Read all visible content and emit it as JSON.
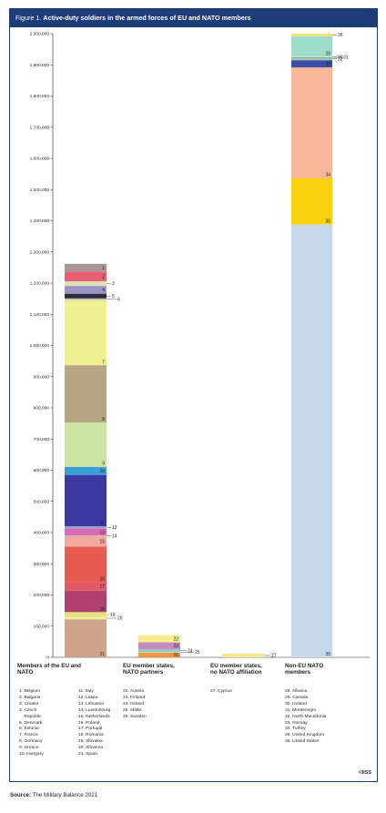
{
  "figure": {
    "number": "Figure 1.",
    "title": "Active-duty soldiers in the armed forces of EU and NATO members",
    "copyright": "©IISS"
  },
  "source": {
    "label": "Source:",
    "text": "The Military Balance 2021"
  },
  "groups": [
    {
      "title": "Members of the EU and\nNATO",
      "legend_columns": [
        [
          "1. Belgium",
          "2. Bulgaria",
          "3. Croatia",
          "4. Czech\n    Republic",
          "5. Denmark",
          "6. Estonia",
          "7. France",
          "8. Germany",
          "9. Greece",
          "10. Hungary"
        ],
        [
          "11. Italy",
          "12. Latvia",
          "13. Lithuania",
          "14. Luxembourg",
          "15. Netherlands",
          "16. Poland",
          "17. Portugal",
          "18. Romania",
          "19. Slovakia",
          "20. Slovenia",
          "21. Spain"
        ]
      ]
    },
    {
      "title": "EU member states,\nNATO partners",
      "legend_columns": [
        [
          "22. Austria",
          "23. Finland",
          "24. Ireland",
          "25. Malta",
          "26. Sweden"
        ]
      ]
    },
    {
      "title": "EU member states,\nno NATO affiliation",
      "legend_columns": [
        [
          "27. Cyprus"
        ]
      ]
    },
    {
      "title": "Non-EU NATO\nmembers",
      "legend_columns": [
        [
          "28. Albania",
          "29. Canada",
          "30. Iceland",
          "31. Montenegro",
          "32. North Macedonia",
          "33. Norway",
          "34. Turkey",
          "35. United Kingdom",
          "36. United States"
        ]
      ]
    }
  ],
  "chart_data": {
    "type": "bar",
    "stacked": true,
    "title": "Active-duty soldiers in the armed forces of EU and NATO members",
    "categories": [
      "Members of the EU and NATO",
      "EU member states, NATO partners",
      "EU member states, no NATO affiliation",
      "Non-EU NATO members"
    ],
    "ylim": [
      0,
      2000000
    ],
    "yticks": [
      0,
      100000,
      200000,
      300000,
      400000,
      500000,
      600000,
      700000,
      800000,
      900000,
      1000000,
      1100000,
      1200000,
      1300000,
      1400000,
      1500000,
      1600000,
      1700000,
      1800000,
      1900000,
      2000000
    ],
    "ytick_labels": [
      "0",
      "100,000",
      "200,000",
      "300,000",
      "400,000",
      "500,000",
      "600,000",
      "700,000",
      "800,000",
      "900,000",
      "1,000,000",
      "1,100,000",
      "1,200,000",
      "1,300,000",
      "1,400,000",
      "1,500,000",
      "1,600,000",
      "1,700,000",
      "1,800,000",
      "1,900,000",
      "2,000,000"
    ],
    "grid": false,
    "stacks": [
      {
        "category": "Members of the EU and NATO",
        "segments": [
          {
            "id": "21",
            "value": 122000,
            "color": "#cfa48c"
          },
          {
            "id": "20",
            "value": 7000,
            "color": "#f4ee9c"
          },
          {
            "id": "19",
            "value": 16000,
            "color": "#e7e37c"
          },
          {
            "id": "18",
            "value": 69000,
            "color": "#b3416f"
          },
          {
            "id": "17",
            "value": 27000,
            "color": "#e05a68"
          },
          {
            "id": "16",
            "value": 114000,
            "color": "#e65c52"
          },
          {
            "id": "15",
            "value": 34000,
            "color": "#f2a8a0"
          },
          {
            "id": "14",
            "value": 1000,
            "color": "#d3e9c0"
          },
          {
            "id": "13",
            "value": 23000,
            "color": "#d86cb4"
          },
          {
            "id": "12",
            "value": 7000,
            "color": "#9aa6cc"
          },
          {
            "id": "11",
            "value": 165000,
            "color": "#3c3aa0"
          },
          {
            "id": "10",
            "value": 26000,
            "color": "#3d9fd8"
          },
          {
            "id": "9",
            "value": 142000,
            "color": "#cde5a4"
          },
          {
            "id": "8",
            "value": 184000,
            "color": "#b6a784"
          },
          {
            "id": "7",
            "value": 208000,
            "color": "#eff090"
          },
          {
            "id": "6",
            "value": 6000,
            "color": "#c8c3b3"
          },
          {
            "id": "5",
            "value": 15000,
            "color": "#2e2a3c"
          },
          {
            "id": "4",
            "value": 25000,
            "color": "#9c93c9"
          },
          {
            "id": "3",
            "value": 15000,
            "color": "#dbe3b6"
          },
          {
            "id": "2",
            "value": 31000,
            "color": "#e85f70"
          },
          {
            "id": "1",
            "value": 25000,
            "color": "#a99595"
          }
        ]
      },
      {
        "category": "EU member states, NATO partners",
        "segments": [
          {
            "id": "26",
            "value": 15000,
            "color": "#f29643"
          },
          {
            "id": "25",
            "value": 2000,
            "color": "#d5d4e6"
          },
          {
            "id": "24",
            "value": 9000,
            "color": "#8fcfb2"
          },
          {
            "id": "23",
            "value": 22000,
            "color": "#c489c2"
          },
          {
            "id": "22",
            "value": 23000,
            "color": "#f4ec8e"
          }
        ]
      },
      {
        "category": "EU member states, no NATO affiliation",
        "segments": [
          {
            "id": "27",
            "value": 12000,
            "color": "#f6e58a"
          }
        ]
      },
      {
        "category": "Non-EU NATO members",
        "segments": [
          {
            "id": "36",
            "value": 1388000,
            "color": "#c7d8ec"
          },
          {
            "id": "35",
            "value": 149000,
            "color": "#f8d20f"
          },
          {
            "id": "34",
            "value": 355000,
            "color": "#f7b798"
          },
          {
            "id": "33",
            "value": 23000,
            "color": "#3b4ea8"
          },
          {
            "id": "32",
            "value": 8000,
            "color": "#a0cbb0"
          },
          {
            "id": "31",
            "value": 2000,
            "color": "#4c4c4c"
          },
          {
            "id": "30",
            "value": 1000,
            "color": "#f0f0f0"
          },
          {
            "id": "29",
            "value": 66000,
            "color": "#9fdcc9"
          },
          {
            "id": "28",
            "value": 8000,
            "color": "#f3e27c"
          }
        ]
      }
    ]
  }
}
